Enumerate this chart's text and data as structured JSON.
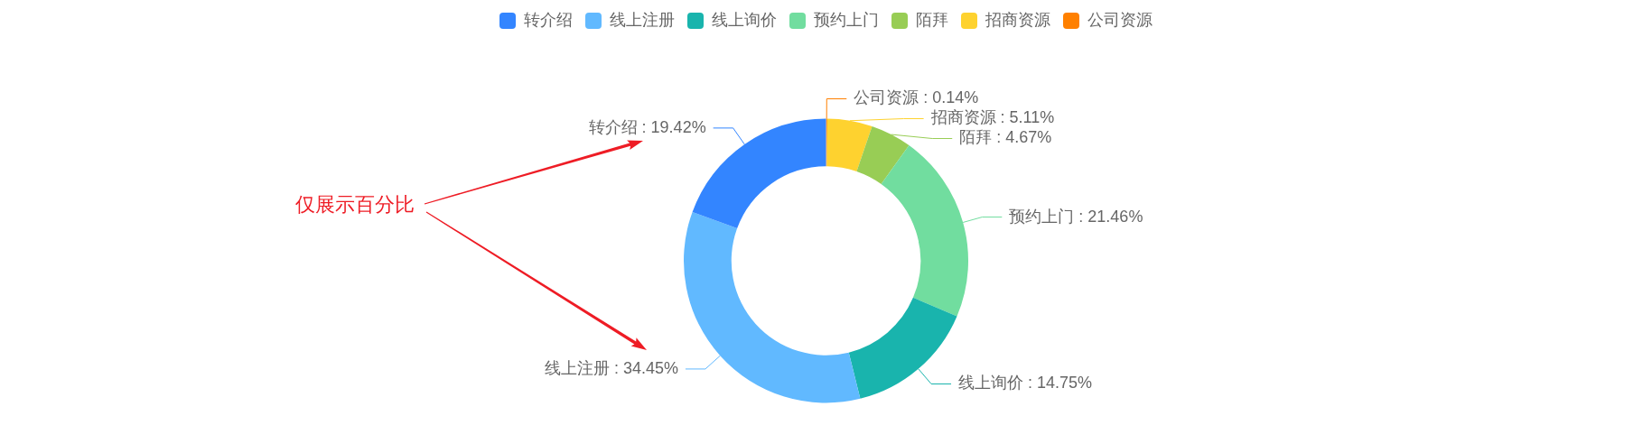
{
  "chart_data": {
    "type": "donut",
    "categories": [
      "转介绍",
      "线上注册",
      "线上询价",
      "预约上门",
      "陌拜",
      "招商资源",
      "公司资源"
    ],
    "values": [
      19.42,
      34.45,
      14.75,
      21.46,
      4.67,
      5.11,
      0.14
    ],
    "colors": [
      "#3385ff",
      "#61b9ff",
      "#19b4ad",
      "#71dd9f",
      "#98cd55",
      "#fed22f",
      "#ff8000"
    ],
    "value_labels": [
      "转介绍 : 19.42%",
      "线上注册 : 34.45%",
      "线上询价 : 14.75%",
      "预约上门 : 21.46%",
      "陌拜 : 4.67%",
      "招商资源 : 5.11%",
      "公司资源 : 0.14%"
    ],
    "legend": "top",
    "annotations": [
      "仅展示百分比"
    ]
  }
}
